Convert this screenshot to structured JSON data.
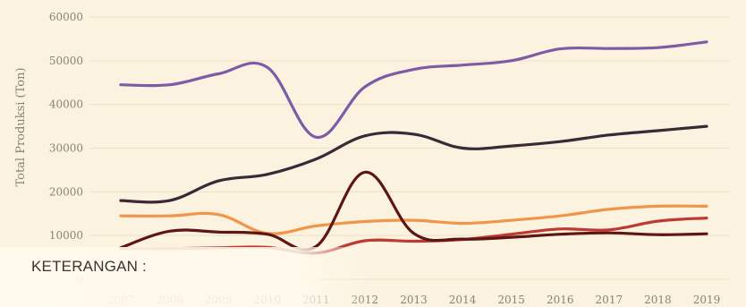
{
  "chart_data": {
    "type": "line",
    "title": "",
    "xlabel": "",
    "ylabel": "Total Produksi (Ton)",
    "x": [
      "2007",
      "2008",
      "2009",
      "2010",
      "2011",
      "2012",
      "2013",
      "2014",
      "2015",
      "2016",
      "2017",
      "2018",
      "2019"
    ],
    "ylim": [
      0,
      60000
    ],
    "yticks": [
      "0",
      "10000",
      "20000",
      "30000",
      "40000",
      "50000",
      "60000"
    ],
    "grid": true,
    "series": [
      {
        "color": "#7d5ba6",
        "values": [
          44500,
          44500,
          47000,
          48500,
          32500,
          44000,
          48000,
          49000,
          50000,
          52700,
          52800,
          53000,
          54300
        ]
      },
      {
        "color": "#3d2836",
        "values": [
          18000,
          18000,
          22500,
          24000,
          27500,
          32800,
          33200,
          30000,
          30500,
          31500,
          33000,
          34000,
          35000
        ]
      },
      {
        "color": "#f0954a",
        "values": [
          14500,
          14500,
          14800,
          10500,
          12200,
          13200,
          13500,
          12800,
          13500,
          14500,
          16000,
          16700,
          16700
        ]
      },
      {
        "color": "#bd3a32",
        "values": [
          7000,
          7000,
          7200,
          7300,
          6000,
          8800,
          8700,
          9100,
          10300,
          11500,
          11300,
          13300,
          14000
        ]
      },
      {
        "color": "#5e1614",
        "values": [
          7200,
          11000,
          10800,
          10300,
          7500,
          24500,
          10500,
          9200,
          9600,
          10300,
          10600,
          10200,
          10400
        ]
      }
    ],
    "legend_title": "KETERANGAN :"
  }
}
